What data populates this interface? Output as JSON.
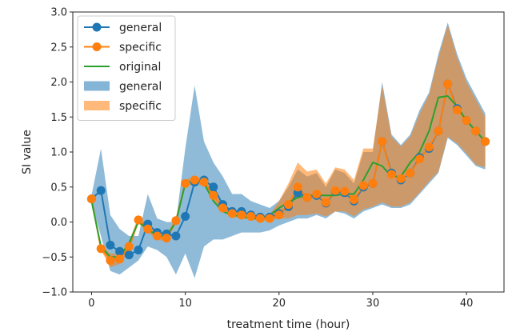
{
  "chart_data": {
    "type": "line",
    "xlabel": "treatment time (hour)",
    "ylabel": "SI value",
    "xlim": [
      -2,
      44
    ],
    "ylim": [
      -1.0,
      3.0
    ],
    "xticks": [
      0,
      10,
      20,
      30,
      40
    ],
    "yticks": [
      -1.0,
      -0.5,
      0.0,
      0.5,
      1.0,
      1.5,
      2.0,
      2.5,
      3.0
    ],
    "x": [
      0,
      1,
      2,
      3,
      4,
      5,
      6,
      7,
      8,
      9,
      10,
      11,
      12,
      13,
      14,
      15,
      16,
      17,
      18,
      19,
      20,
      21,
      22,
      23,
      24,
      25,
      26,
      27,
      28,
      29,
      30,
      31,
      32,
      33,
      34,
      35,
      36,
      37,
      38,
      39,
      40,
      41,
      42
    ],
    "legend": {
      "position": "top-left",
      "entries": [
        "general",
        "specific",
        "original",
        "general",
        "specific"
      ]
    },
    "series": [
      {
        "name": "general",
        "kind": "line-marker",
        "color": "#1f77b4",
        "values": [
          0.33,
          0.45,
          -0.33,
          -0.42,
          -0.47,
          -0.4,
          -0.03,
          -0.15,
          -0.17,
          -0.2,
          0.08,
          0.57,
          0.6,
          0.5,
          0.25,
          0.15,
          0.15,
          0.1,
          0.07,
          0.07,
          0.12,
          0.22,
          0.42,
          0.35,
          0.38,
          0.27,
          0.44,
          0.42,
          0.3,
          0.5,
          0.55,
          1.15,
          0.7,
          0.6,
          0.7,
          0.92,
          1.05,
          1.3,
          1.97,
          1.62,
          1.45,
          1.3,
          1.15
        ]
      },
      {
        "name": "specific",
        "kind": "line-marker",
        "color": "#ff7f0e",
        "values": [
          0.33,
          -0.38,
          -0.55,
          -0.53,
          -0.35,
          0.03,
          -0.1,
          -0.2,
          -0.23,
          0.02,
          0.55,
          0.6,
          0.57,
          0.38,
          0.2,
          0.12,
          0.1,
          0.08,
          0.05,
          0.05,
          0.1,
          0.25,
          0.5,
          0.35,
          0.4,
          0.28,
          0.45,
          0.44,
          0.32,
          0.52,
          0.55,
          1.15,
          0.68,
          0.62,
          0.7,
          0.9,
          1.07,
          1.3,
          1.97,
          1.6,
          1.45,
          1.3,
          1.15
        ]
      },
      {
        "name": "original",
        "kind": "line",
        "color": "#2ca02c",
        "values": [
          0.3,
          -0.35,
          -0.5,
          -0.5,
          -0.3,
          0.0,
          -0.1,
          -0.2,
          -0.2,
          0.0,
          0.55,
          0.6,
          0.55,
          0.3,
          0.15,
          0.1,
          0.08,
          0.05,
          0.05,
          0.1,
          0.2,
          0.28,
          0.35,
          0.38,
          0.38,
          0.38,
          0.38,
          0.4,
          0.4,
          0.6,
          0.85,
          0.8,
          0.65,
          0.65,
          0.85,
          1.0,
          1.3,
          1.78,
          1.8,
          1.65,
          1.45,
          1.3,
          1.15
        ]
      },
      {
        "name": "general",
        "kind": "band",
        "color": "#1f77b4",
        "lower": [
          0.28,
          -0.2,
          -0.7,
          -0.75,
          -0.65,
          -0.55,
          -0.35,
          -0.4,
          -0.5,
          -0.75,
          -0.45,
          -0.8,
          -0.35,
          -0.25,
          -0.25,
          -0.2,
          -0.15,
          -0.15,
          -0.15,
          -0.12,
          -0.05,
          0.0,
          0.05,
          0.05,
          0.1,
          0.05,
          0.15,
          0.12,
          0.05,
          0.15,
          0.2,
          0.25,
          0.2,
          0.2,
          0.25,
          0.4,
          0.55,
          0.7,
          1.2,
          1.1,
          0.95,
          0.8,
          0.75
        ],
        "upper": [
          0.38,
          1.05,
          0.1,
          -0.1,
          -0.2,
          -0.2,
          0.4,
          0.05,
          0.0,
          0.0,
          1.05,
          1.95,
          1.15,
          0.85,
          0.65,
          0.4,
          0.4,
          0.3,
          0.25,
          0.2,
          0.3,
          0.5,
          0.75,
          0.65,
          0.7,
          0.5,
          0.75,
          0.7,
          0.55,
          1.0,
          1.0,
          2.0,
          1.25,
          1.1,
          1.25,
          1.6,
          1.85,
          2.4,
          2.85,
          2.4,
          2.05,
          1.8,
          1.55
        ]
      },
      {
        "name": "specific",
        "kind": "band",
        "color": "#ff7f0e",
        "lower": [
          0.28,
          -0.4,
          -0.65,
          -0.6,
          -0.42,
          -0.02,
          -0.15,
          -0.25,
          -0.28,
          -0.02,
          0.5,
          0.55,
          0.52,
          0.32,
          0.15,
          0.08,
          0.05,
          0.04,
          0.02,
          0.02,
          0.05,
          0.05,
          0.1,
          0.1,
          0.12,
          0.08,
          0.15,
          0.15,
          0.08,
          0.18,
          0.22,
          0.28,
          0.22,
          0.22,
          0.28,
          0.42,
          0.58,
          0.72,
          1.22,
          1.12,
          0.98,
          0.82,
          0.78
        ],
        "upper": [
          0.38,
          -0.32,
          -0.45,
          -0.45,
          -0.28,
          0.08,
          -0.05,
          -0.15,
          -0.18,
          0.06,
          0.6,
          0.65,
          0.62,
          0.44,
          0.25,
          0.16,
          0.15,
          0.12,
          0.1,
          0.1,
          0.3,
          0.55,
          0.85,
          0.72,
          0.75,
          0.55,
          0.78,
          0.75,
          0.6,
          1.05,
          1.05,
          1.95,
          1.22,
          1.08,
          1.22,
          1.55,
          1.82,
          2.35,
          2.82,
          2.35,
          2.0,
          1.75,
          1.5
        ]
      }
    ]
  }
}
